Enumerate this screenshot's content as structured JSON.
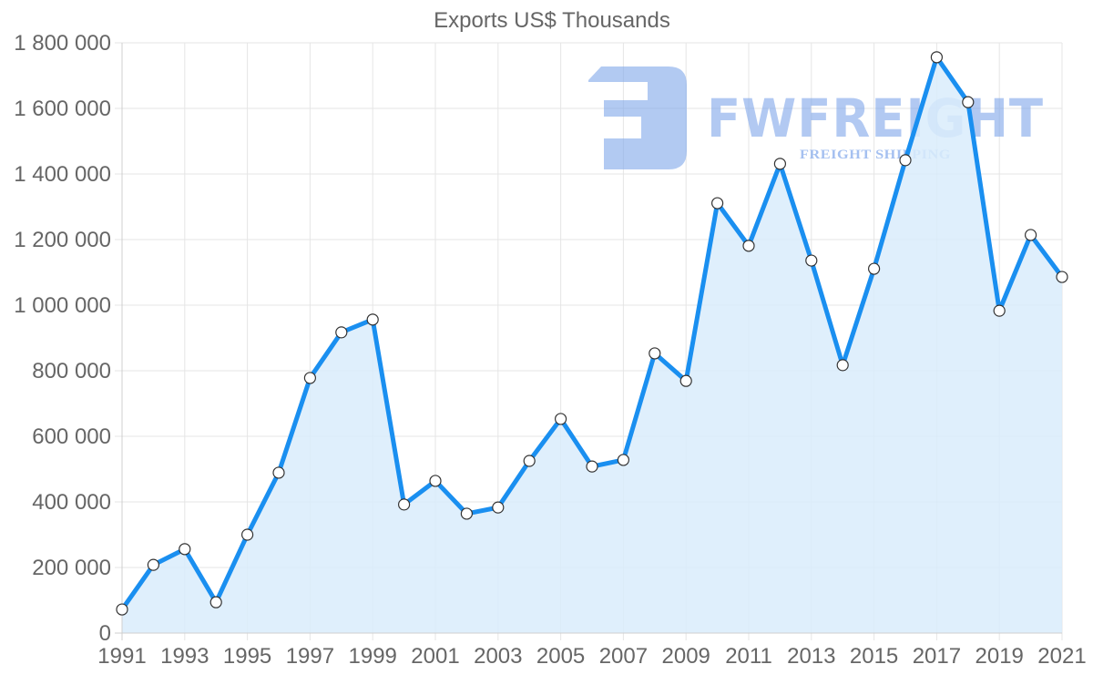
{
  "chart_data": {
    "type": "area",
    "title": "Exports US$ Thousands",
    "xlabel": "",
    "ylabel": "",
    "x": [
      1991,
      1992,
      1993,
      1994,
      1995,
      1996,
      1997,
      1998,
      1999,
      2000,
      2001,
      2002,
      2003,
      2004,
      2005,
      2006,
      2007,
      2008,
      2009,
      2010,
      2011,
      2012,
      2013,
      2014,
      2015,
      2016,
      2017,
      2018,
      2019,
      2020,
      2021
    ],
    "series": [
      {
        "name": "Exports US$ Thousands",
        "values": [
          72000,
          208000,
          256000,
          94000,
          300000,
          489000,
          778000,
          917000,
          956000,
          392000,
          464000,
          364000,
          383000,
          525000,
          653000,
          508000,
          528000,
          853000,
          769000,
          1311000,
          1181000,
          1431000,
          1136000,
          817000,
          1111000,
          1442000,
          1756000,
          1619000,
          983000,
          1214000,
          1086000
        ],
        "line_color": "#1a8ff0",
        "fill_color": "#d9ecfc",
        "point_fill": "#ffffff",
        "point_stroke": "#333333"
      }
    ],
    "ylim": [
      0,
      1800000
    ],
    "xlim": [
      1991,
      2021
    ],
    "y_ticks": [
      "0",
      "200 000",
      "400 000",
      "600 000",
      "800 000",
      "1 000 000",
      "1 200 000",
      "1 400 000",
      "1 600 000",
      "1 800 000"
    ],
    "y_tick_values": [
      0,
      200000,
      400000,
      600000,
      800000,
      1000000,
      1200000,
      1400000,
      1600000,
      1800000
    ],
    "x_ticks": [
      "1991",
      "1993",
      "1995",
      "1997",
      "1999",
      "2001",
      "2003",
      "2005",
      "2007",
      "2009",
      "2011",
      "2013",
      "2015",
      "2017",
      "2019",
      "2021"
    ],
    "grid": true,
    "legend": "none"
  },
  "watermark": {
    "brand": "FWFREIGHT",
    "tagline": "FREIGHT SHIPPING",
    "color": "#7fa6ea"
  }
}
